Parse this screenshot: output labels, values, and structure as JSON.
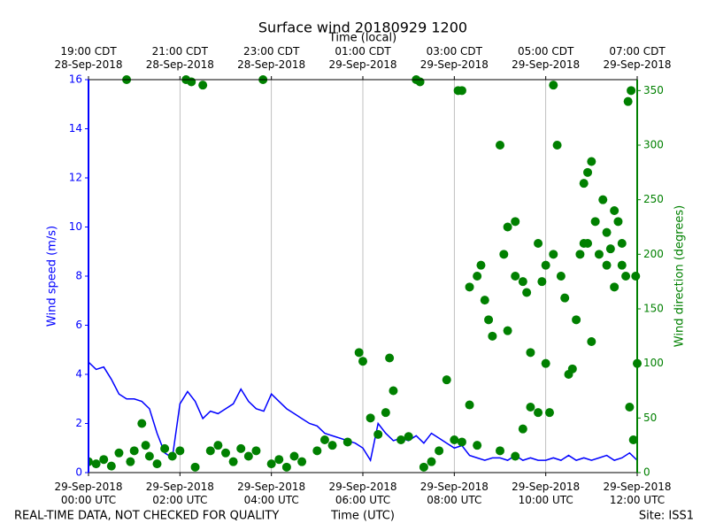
{
  "chart_data": {
    "type": "line",
    "title": "Surface wind 20180929 1200",
    "x_label": "Time (UTC)",
    "x2_label": "Time (local)",
    "y_label": "Wind speed (m/s)",
    "y2_label": "Wind direction (degrees)",
    "footer_left": "REAL-TIME DATA, NOT CHECKED FOR QUALITY",
    "footer_right": "Site: ISS1",
    "grid": true,
    "xlim": [
      0,
      720
    ],
    "xticks": [
      {
        "value": 0,
        "label": [
          "29-Sep-2018",
          "00:00 UTC"
        ]
      },
      {
        "value": 120,
        "label": [
          "29-Sep-2018",
          "02:00 UTC"
        ]
      },
      {
        "value": 240,
        "label": [
          "29-Sep-2018",
          "04:00 UTC"
        ]
      },
      {
        "value": 360,
        "label": [
          "29-Sep-2018",
          "06:00 UTC"
        ]
      },
      {
        "value": 480,
        "label": [
          "29-Sep-2018",
          "08:00 UTC"
        ]
      },
      {
        "value": 600,
        "label": [
          "29-Sep-2018",
          "10:00 UTC"
        ]
      },
      {
        "value": 720,
        "label": [
          "29-Sep-2018",
          "12:00 UTC"
        ]
      }
    ],
    "x2ticks": [
      {
        "value": 0,
        "label": [
          "19:00 CDT",
          "28-Sep-2018"
        ]
      },
      {
        "value": 120,
        "label": [
          "21:00 CDT",
          "28-Sep-2018"
        ]
      },
      {
        "value": 240,
        "label": [
          "23:00 CDT",
          "28-Sep-2018"
        ]
      },
      {
        "value": 360,
        "label": [
          "01:00 CDT",
          "29-Sep-2018"
        ]
      },
      {
        "value": 480,
        "label": [
          "03:00 CDT",
          "29-Sep-2018"
        ]
      },
      {
        "value": 600,
        "label": [
          "05:00 CDT",
          "29-Sep-2018"
        ]
      },
      {
        "value": 720,
        "label": [
          "07:00 CDT",
          "29-Sep-2018"
        ]
      }
    ],
    "ylim": [
      0,
      16
    ],
    "yticks": [
      0,
      2,
      4,
      6,
      8,
      10,
      12,
      14,
      16
    ],
    "y2lim": [
      0,
      360
    ],
    "y2ticks": [
      0,
      50,
      100,
      150,
      200,
      250,
      300,
      350
    ],
    "series": [
      {
        "name": "Wind speed",
        "type": "line",
        "color": "#0000ff",
        "x": [
          0,
          10,
          20,
          30,
          40,
          50,
          60,
          70,
          80,
          90,
          100,
          110,
          120,
          130,
          140,
          150,
          160,
          170,
          180,
          190,
          200,
          210,
          220,
          230,
          240,
          250,
          260,
          270,
          280,
          290,
          300,
          310,
          320,
          330,
          340,
          350,
          360,
          370,
          380,
          390,
          400,
          410,
          420,
          430,
          440,
          450,
          460,
          470,
          480,
          490,
          500,
          510,
          520,
          530,
          540,
          550,
          560,
          570,
          580,
          590,
          600,
          610,
          620,
          630,
          640,
          650,
          660,
          670,
          680,
          690,
          700,
          710,
          720
        ],
        "values": [
          4.5,
          4.2,
          4.3,
          3.8,
          3.2,
          3.0,
          3.0,
          2.9,
          2.6,
          1.6,
          0.8,
          0.6,
          2.8,
          3.3,
          2.9,
          2.2,
          2.5,
          2.4,
          2.6,
          2.8,
          3.4,
          2.9,
          2.6,
          2.5,
          3.2,
          2.9,
          2.6,
          2.4,
          2.2,
          2.0,
          1.9,
          1.6,
          1.5,
          1.4,
          1.3,
          1.2,
          1.0,
          0.5,
          2.0,
          1.6,
          1.3,
          1.4,
          1.3,
          1.5,
          1.2,
          1.6,
          1.4,
          1.2,
          1.0,
          1.1,
          0.7,
          0.6,
          0.5,
          0.6,
          0.6,
          0.5,
          0.7,
          0.5,
          0.6,
          0.5,
          0.5,
          0.6,
          0.5,
          0.7,
          0.5,
          0.6,
          0.5,
          0.6,
          0.7,
          0.5,
          0.6,
          0.8,
          0.5
        ]
      },
      {
        "name": "Wind direction",
        "type": "scatter",
        "axis": "y2",
        "color": "#008000",
        "x": [
          0,
          10,
          20,
          30,
          40,
          50,
          55,
          60,
          70,
          75,
          80,
          90,
          100,
          110,
          120,
          128,
          135,
          140,
          150,
          160,
          170,
          180,
          190,
          200,
          210,
          220,
          229,
          240,
          250,
          260,
          270,
          280,
          300,
          310,
          320,
          340,
          355,
          360,
          370,
          380,
          390,
          395,
          400,
          410,
          420,
          430,
          435,
          440,
          450,
          460,
          470,
          480,
          485,
          490,
          490,
          500,
          500,
          510,
          510,
          515,
          520,
          525,
          530,
          540,
          540,
          545,
          550,
          550,
          560,
          560,
          560,
          570,
          570,
          575,
          580,
          580,
          590,
          590,
          595,
          600,
          600,
          605,
          610,
          610,
          615,
          620,
          625,
          630,
          635,
          640,
          645,
          650,
          650,
          655,
          655,
          660,
          660,
          665,
          670,
          675,
          680,
          680,
          685,
          690,
          690,
          695,
          700,
          700,
          705,
          708,
          710,
          712,
          715,
          718,
          720
        ],
        "values": [
          10,
          8,
          12,
          6,
          18,
          360,
          10,
          20,
          45,
          25,
          15,
          8,
          22,
          15,
          20,
          360,
          358,
          5,
          355,
          20,
          25,
          18,
          10,
          22,
          15,
          20,
          360,
          8,
          12,
          5,
          15,
          10,
          20,
          30,
          25,
          28,
          110,
          102,
          50,
          35,
          55,
          105,
          75,
          30,
          33,
          360,
          358,
          5,
          10,
          20,
          85,
          30,
          350,
          350,
          28,
          62,
          170,
          25,
          180,
          190,
          158,
          140,
          125,
          20,
          300,
          200,
          225,
          130,
          15,
          180,
          230,
          40,
          175,
          165,
          110,
          60,
          55,
          210,
          175,
          100,
          190,
          55,
          355,
          200,
          300,
          180,
          160,
          90,
          95,
          140,
          200,
          265,
          210,
          275,
          210,
          120,
          285,
          230,
          200,
          250,
          220,
          190,
          205,
          170,
          240,
          230,
          190,
          210,
          180,
          340,
          60,
          350,
          30,
          180,
          100
        ]
      }
    ]
  }
}
